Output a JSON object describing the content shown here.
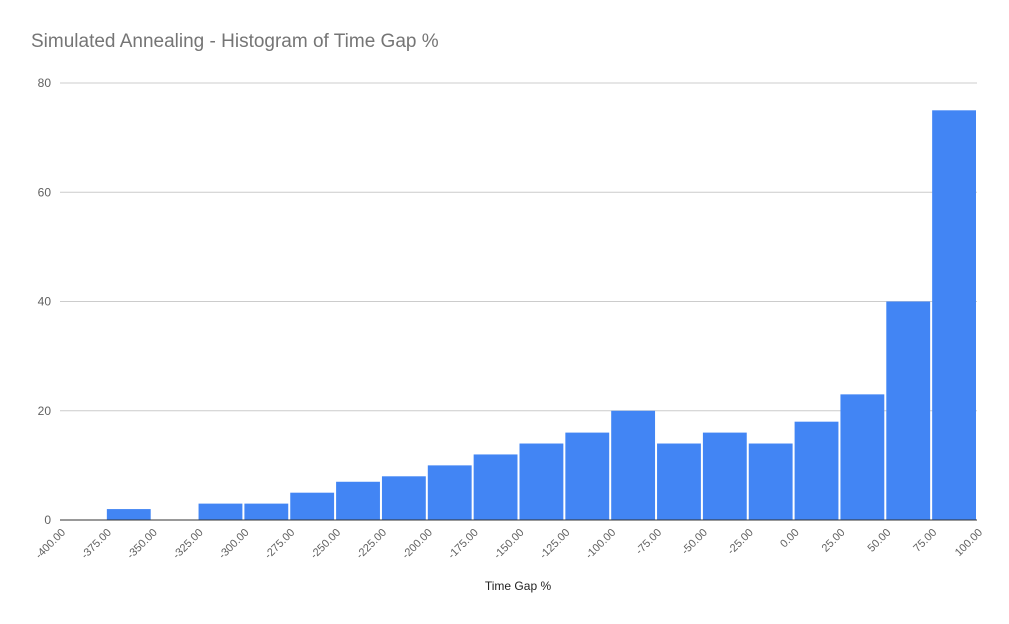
{
  "chart_data": {
    "type": "bar",
    "title": "Simulated Annealing - Histogram of Time Gap %",
    "xlabel": "Time Gap %",
    "ylabel": "",
    "ylim": [
      0,
      80
    ],
    "yticks": [
      "0",
      "20",
      "40",
      "60",
      "80"
    ],
    "xticks": [
      "-400.00",
      "-375.00",
      "-350.00",
      "-325.00",
      "-300.00",
      "-275.00",
      "-250.00",
      "-225.00",
      "-200.00",
      "-175.00",
      "-150.00",
      "-125.00",
      "-100.00",
      "-75.00",
      "-50.00",
      "-25.00",
      "0.00",
      "25.00",
      "50.00",
      "75.00",
      "100.00"
    ],
    "bins": [
      {
        "from": -400,
        "to": -375,
        "count": 0
      },
      {
        "from": -375,
        "to": -350,
        "count": 2
      },
      {
        "from": -350,
        "to": -325,
        "count": 0
      },
      {
        "from": -325,
        "to": -300,
        "count": 3
      },
      {
        "from": -300,
        "to": -275,
        "count": 3
      },
      {
        "from": -275,
        "to": -250,
        "count": 5
      },
      {
        "from": -250,
        "to": -225,
        "count": 7
      },
      {
        "from": -225,
        "to": -200,
        "count": 8
      },
      {
        "from": -200,
        "to": -175,
        "count": 10
      },
      {
        "from": -175,
        "to": -150,
        "count": 12
      },
      {
        "from": -150,
        "to": -125,
        "count": 14
      },
      {
        "from": -125,
        "to": -100,
        "count": 16
      },
      {
        "from": -100,
        "to": -75,
        "count": 20
      },
      {
        "from": -75,
        "to": -50,
        "count": 14
      },
      {
        "from": -50,
        "to": -25,
        "count": 16
      },
      {
        "from": -25,
        "to": 0,
        "count": 14
      },
      {
        "from": 0,
        "to": 25,
        "count": 18
      },
      {
        "from": 25,
        "to": 50,
        "count": 23
      },
      {
        "from": 50,
        "to": 75,
        "count": 40
      },
      {
        "from": 75,
        "to": 100,
        "count": 75
      }
    ],
    "grid": true,
    "legend": "none",
    "bar_color": "#4285f4"
  }
}
